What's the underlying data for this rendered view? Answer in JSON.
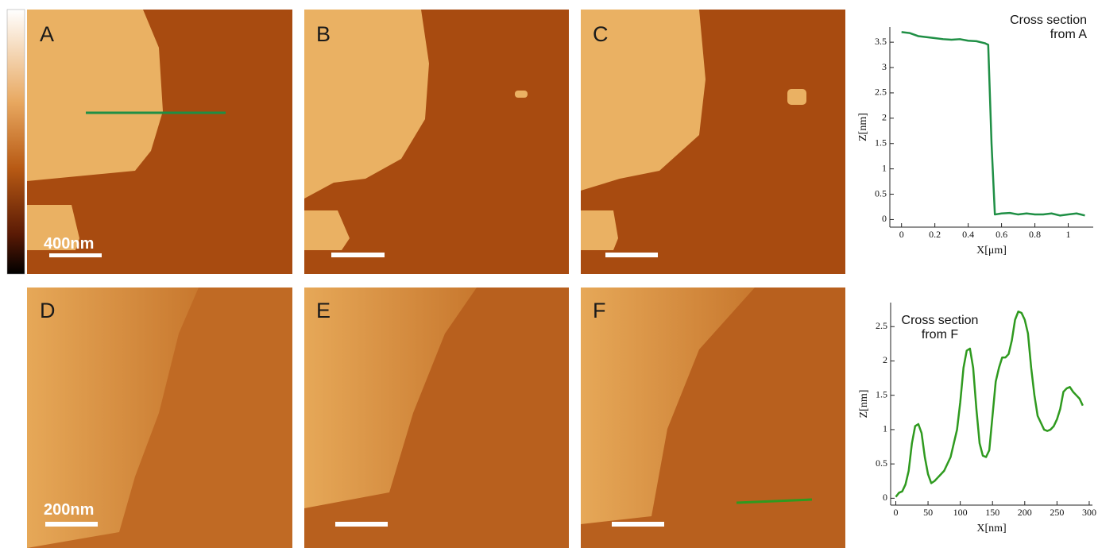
{
  "panels": [
    {
      "label": "A",
      "scale_bar": "400nm"
    },
    {
      "label": "B"
    },
    {
      "label": "C"
    },
    {
      "label": "D",
      "scale_bar": "200nm"
    },
    {
      "label": "E"
    },
    {
      "label": "F"
    }
  ],
  "chart_data": [
    {
      "type": "line",
      "annotation": [
        "Cross section",
        "from A"
      ],
      "xlabel": "X[μm]",
      "ylabel": "Z[nm]",
      "xlim": [
        -0.07,
        1.15
      ],
      "xticks": [
        0,
        0.2,
        0.4,
        0.6,
        0.8,
        1
      ],
      "ylim": [
        -0.15,
        3.8
      ],
      "yticks": [
        0,
        0.5,
        1,
        1.5,
        2,
        2.5,
        3,
        3.5
      ],
      "x": [
        0,
        0.05,
        0.1,
        0.15,
        0.2,
        0.25,
        0.3,
        0.35,
        0.4,
        0.45,
        0.5,
        0.52,
        0.54,
        0.56,
        0.6,
        0.65,
        0.7,
        0.75,
        0.8,
        0.85,
        0.9,
        0.95,
        1.0,
        1.05,
        1.1
      ],
      "series": [
        {
          "color": "#1f8f45",
          "values": [
            3.7,
            3.68,
            3.62,
            3.6,
            3.58,
            3.56,
            3.55,
            3.56,
            3.53,
            3.52,
            3.48,
            3.45,
            1.5,
            0.1,
            0.12,
            0.13,
            0.1,
            0.12,
            0.1,
            0.1,
            0.12,
            0.08,
            0.1,
            0.12,
            0.08
          ]
        }
      ]
    },
    {
      "type": "line",
      "annotation": [
        "Cross section",
        "from F"
      ],
      "xlabel": "X[nm]",
      "ylabel": "Z[nm]",
      "xlim": [
        -8,
        305
      ],
      "xticks": [
        0,
        50,
        100,
        150,
        200,
        250,
        300
      ],
      "ylim": [
        -0.1,
        2.85
      ],
      "yticks": [
        0,
        0.5,
        1,
        1.5,
        2,
        2.5
      ],
      "x": [
        0,
        5,
        10,
        15,
        20,
        25,
        30,
        35,
        40,
        45,
        50,
        55,
        60,
        65,
        70,
        75,
        80,
        85,
        90,
        95,
        100,
        105,
        110,
        115,
        120,
        125,
        130,
        135,
        140,
        145,
        150,
        155,
        160,
        165,
        170,
        175,
        180,
        185,
        190,
        195,
        200,
        205,
        210,
        215,
        220,
        225,
        230,
        235,
        240,
        245,
        250,
        255,
        260,
        265,
        270,
        275,
        280,
        285,
        290
      ],
      "series": [
        {
          "color": "#2f9a1f",
          "values": [
            0.02,
            0.08,
            0.1,
            0.2,
            0.4,
            0.8,
            1.05,
            1.08,
            0.95,
            0.6,
            0.35,
            0.22,
            0.25,
            0.3,
            0.35,
            0.4,
            0.5,
            0.6,
            0.8,
            1.0,
            1.4,
            1.9,
            2.15,
            2.18,
            1.9,
            1.3,
            0.8,
            0.62,
            0.6,
            0.7,
            1.2,
            1.7,
            1.9,
            2.05,
            2.05,
            2.1,
            2.3,
            2.6,
            2.72,
            2.7,
            2.6,
            2.4,
            1.9,
            1.5,
            1.2,
            1.1,
            1.0,
            0.98,
            1.0,
            1.05,
            1.15,
            1.3,
            1.55,
            1.6,
            1.62,
            1.55,
            1.5,
            1.45,
            1.35
          ]
        }
      ]
    }
  ]
}
